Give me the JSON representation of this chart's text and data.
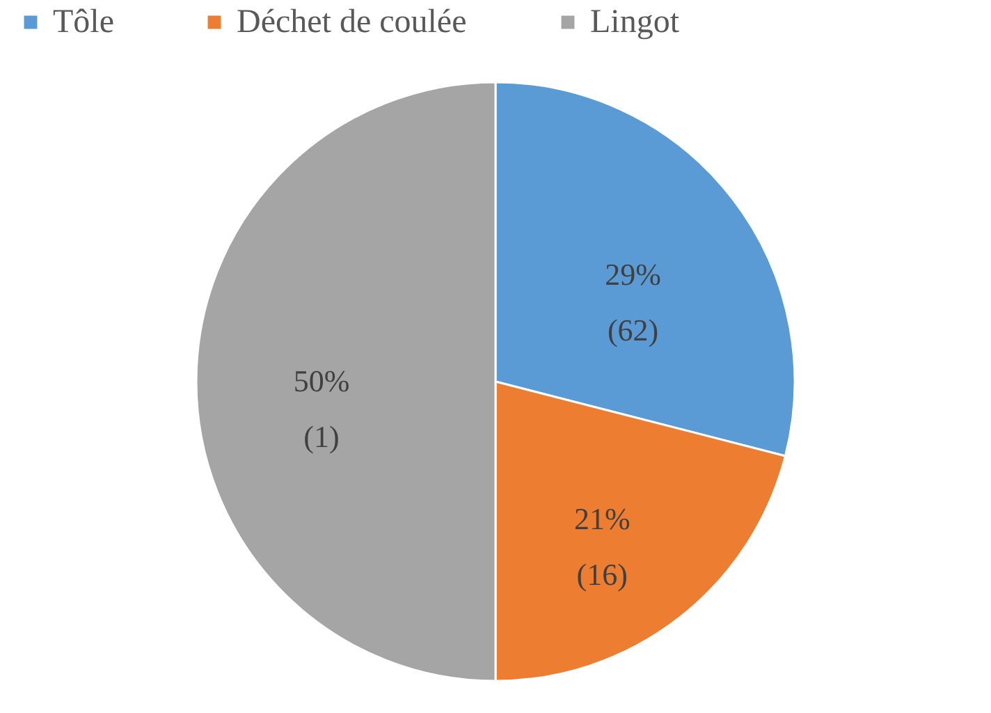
{
  "chart_data": {
    "type": "pie",
    "categories": [
      "Tôle",
      "Déchet de coulée",
      "Lingot"
    ],
    "values": [
      29,
      21,
      50
    ],
    "colors": [
      "#5b9bd5",
      "#ed7d31",
      "#a5a5a5"
    ],
    "value_labels": [
      "29%\n(62)",
      "21%\n(16)",
      "50%\n(1)"
    ],
    "legend": "top"
  }
}
